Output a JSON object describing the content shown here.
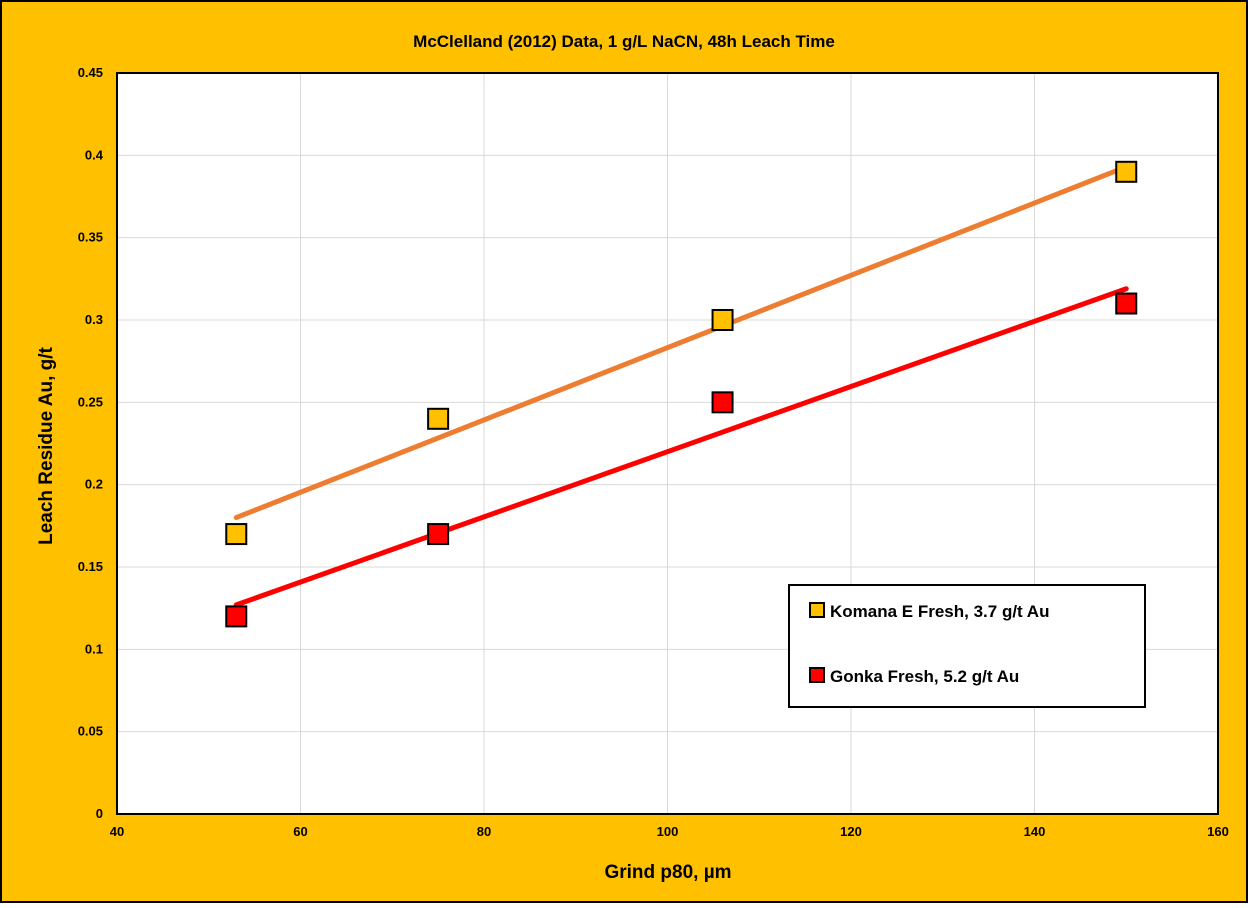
{
  "chart_data": {
    "type": "scatter",
    "title": "McClelland (2012) Data, 1 g/L NaCN, 48h Leach Time",
    "xlabel": "Grind p80, µm",
    "ylabel": "Leach Residue Au, g/t",
    "xlim": [
      40,
      160
    ],
    "ylim": [
      0,
      0.45
    ],
    "xticks": [
      40,
      60,
      80,
      100,
      120,
      140,
      160
    ],
    "yticks": [
      0,
      0.05,
      0.1,
      0.15,
      0.2,
      0.25,
      0.3,
      0.35,
      0.4,
      0.45
    ],
    "grid": true,
    "legend_position": "bottom-right",
    "background_color": "#FFC000",
    "plot_background_color": "#FFFFFF",
    "series": [
      {
        "name": "Komana E Fresh, 3.7 g/t Au",
        "marker": "square",
        "marker_color": "#FFC000",
        "trendline_color": "#ED7D31",
        "x": [
          53,
          75,
          106,
          150
        ],
        "y": [
          0.17,
          0.24,
          0.3,
          0.39
        ],
        "trendline": {
          "x": [
            53,
            150
          ],
          "y": [
            0.18,
            0.393
          ]
        }
      },
      {
        "name": "Gonka Fresh, 5.2 g/t Au",
        "marker": "square",
        "marker_color": "#FF0000",
        "trendline_color": "#FF0000",
        "x": [
          53,
          75,
          106,
          150
        ],
        "y": [
          0.12,
          0.17,
          0.25,
          0.31
        ],
        "trendline": {
          "x": [
            53,
            150
          ],
          "y": [
            0.127,
            0.319
          ]
        }
      }
    ]
  }
}
